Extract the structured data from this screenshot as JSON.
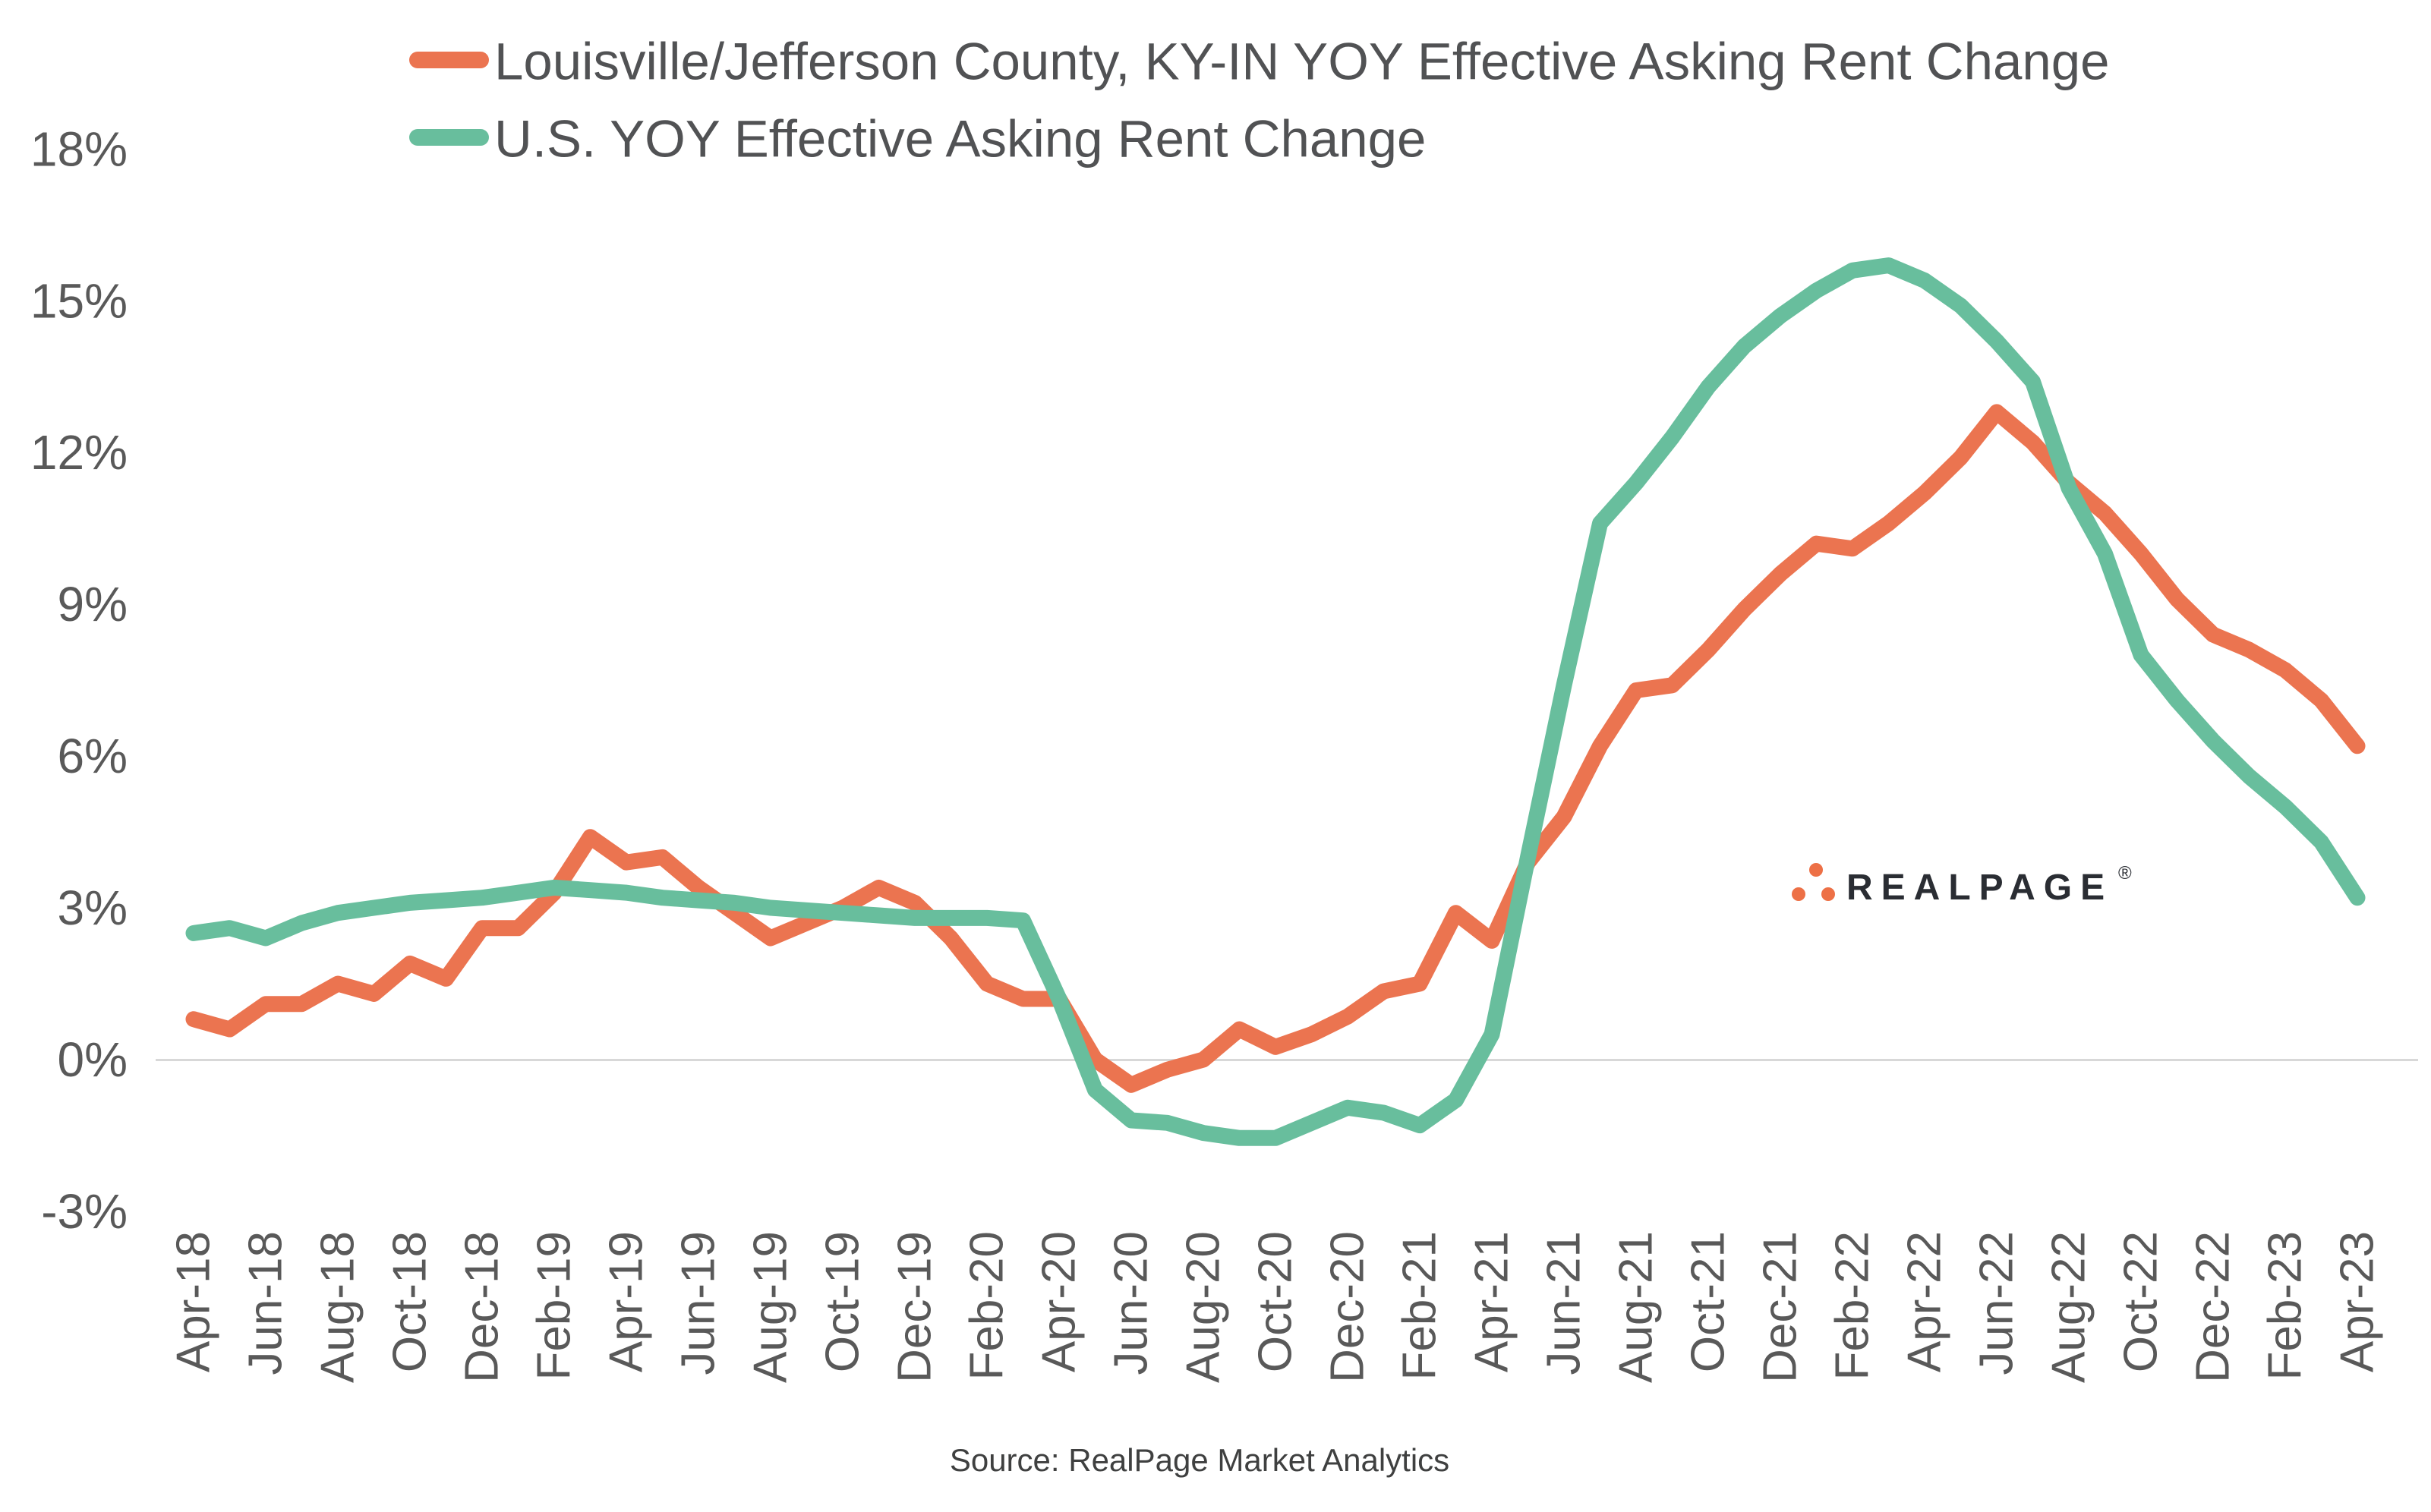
{
  "chart_data": {
    "type": "line",
    "title": "",
    "x_months_start": "Apr-18",
    "x_months_end": "Apr-23",
    "x_points_total": 61,
    "x_tick_every": 2,
    "x_tick_labels": [
      "Apr-18",
      "Jun-18",
      "Aug-18",
      "Oct-18",
      "Dec-18",
      "Feb-19",
      "Apr-19",
      "Jun-19",
      "Aug-19",
      "Oct-19",
      "Dec-19",
      "Feb-20",
      "Apr-20",
      "Jun-20",
      "Aug-20",
      "Oct-20",
      "Dec-20",
      "Feb-21",
      "Apr-21",
      "Jun-21",
      "Aug-21",
      "Oct-21",
      "Dec-21",
      "Feb-22",
      "Apr-22",
      "Jun-22",
      "Aug-22",
      "Oct-22",
      "Dec-22",
      "Feb-23",
      "Apr-23"
    ],
    "y_tick_labels": [
      "18%",
      "15%",
      "12%",
      "9%",
      "6%",
      "3%",
      "0%",
      "-3%"
    ],
    "y_tick_values": [
      18,
      15,
      12,
      9,
      6,
      3,
      0,
      -3
    ],
    "ylim": [
      -3,
      18
    ],
    "grid": "zero-line-only",
    "zero_line_color": "#D8D8D8",
    "axis_text_color": "#595959",
    "legend_position": "top-left-inside",
    "legend_text_color": "#515254",
    "series": [
      {
        "name": "Louisville/Jefferson County, KY-IN YOY Effective Asking Rent Change",
        "color": "#EB7450",
        "values": [
          0.8,
          0.6,
          1.1,
          1.1,
          1.5,
          1.3,
          1.9,
          1.6,
          2.6,
          2.6,
          3.3,
          4.4,
          3.9,
          4.0,
          3.4,
          2.9,
          2.4,
          2.7,
          3.0,
          3.4,
          3.1,
          2.4,
          1.5,
          1.2,
          1.2,
          0.0,
          -0.5,
          -0.2,
          0.0,
          0.6,
          0.25,
          0.5,
          0.85,
          1.35,
          1.5,
          2.9,
          2.35,
          3.9,
          4.8,
          6.2,
          7.3,
          7.4,
          8.1,
          8.9,
          9.6,
          10.2,
          10.1,
          10.6,
          11.2,
          11.9,
          12.8,
          12.2,
          11.4,
          10.8,
          10.0,
          9.1,
          8.4,
          8.1,
          7.7,
          7.1,
          6.2
        ]
      },
      {
        "name": "U.S. YOY Effective Asking Rent Change",
        "color": "#68BE9D",
        "values": [
          2.5,
          2.6,
          2.4,
          2.7,
          2.9,
          3.0,
          3.1,
          3.15,
          3.2,
          3.3,
          3.4,
          3.35,
          3.3,
          3.2,
          3.15,
          3.1,
          3.0,
          2.95,
          2.9,
          2.85,
          2.8,
          2.8,
          2.8,
          2.75,
          1.2,
          -0.6,
          -1.2,
          -1.25,
          -1.45,
          -1.55,
          -1.55,
          -1.25,
          -0.95,
          -1.05,
          -1.3,
          -0.8,
          0.5,
          4.0,
          7.4,
          10.6,
          11.4,
          12.3,
          13.3,
          14.1,
          14.7,
          15.2,
          15.6,
          15.7,
          15.4,
          14.9,
          14.2,
          13.4,
          11.3,
          10.0,
          8.0,
          7.1,
          6.3,
          5.6,
          5.0,
          4.3,
          3.2
        ]
      }
    ],
    "source_caption": "Source: RealPage Market Analytics",
    "source_color": "#3F4040",
    "logo": {
      "text": "REALPAGE",
      "registered_mark": "®",
      "dot_color": "#ED7046",
      "text_color": "#2A2D33"
    }
  }
}
